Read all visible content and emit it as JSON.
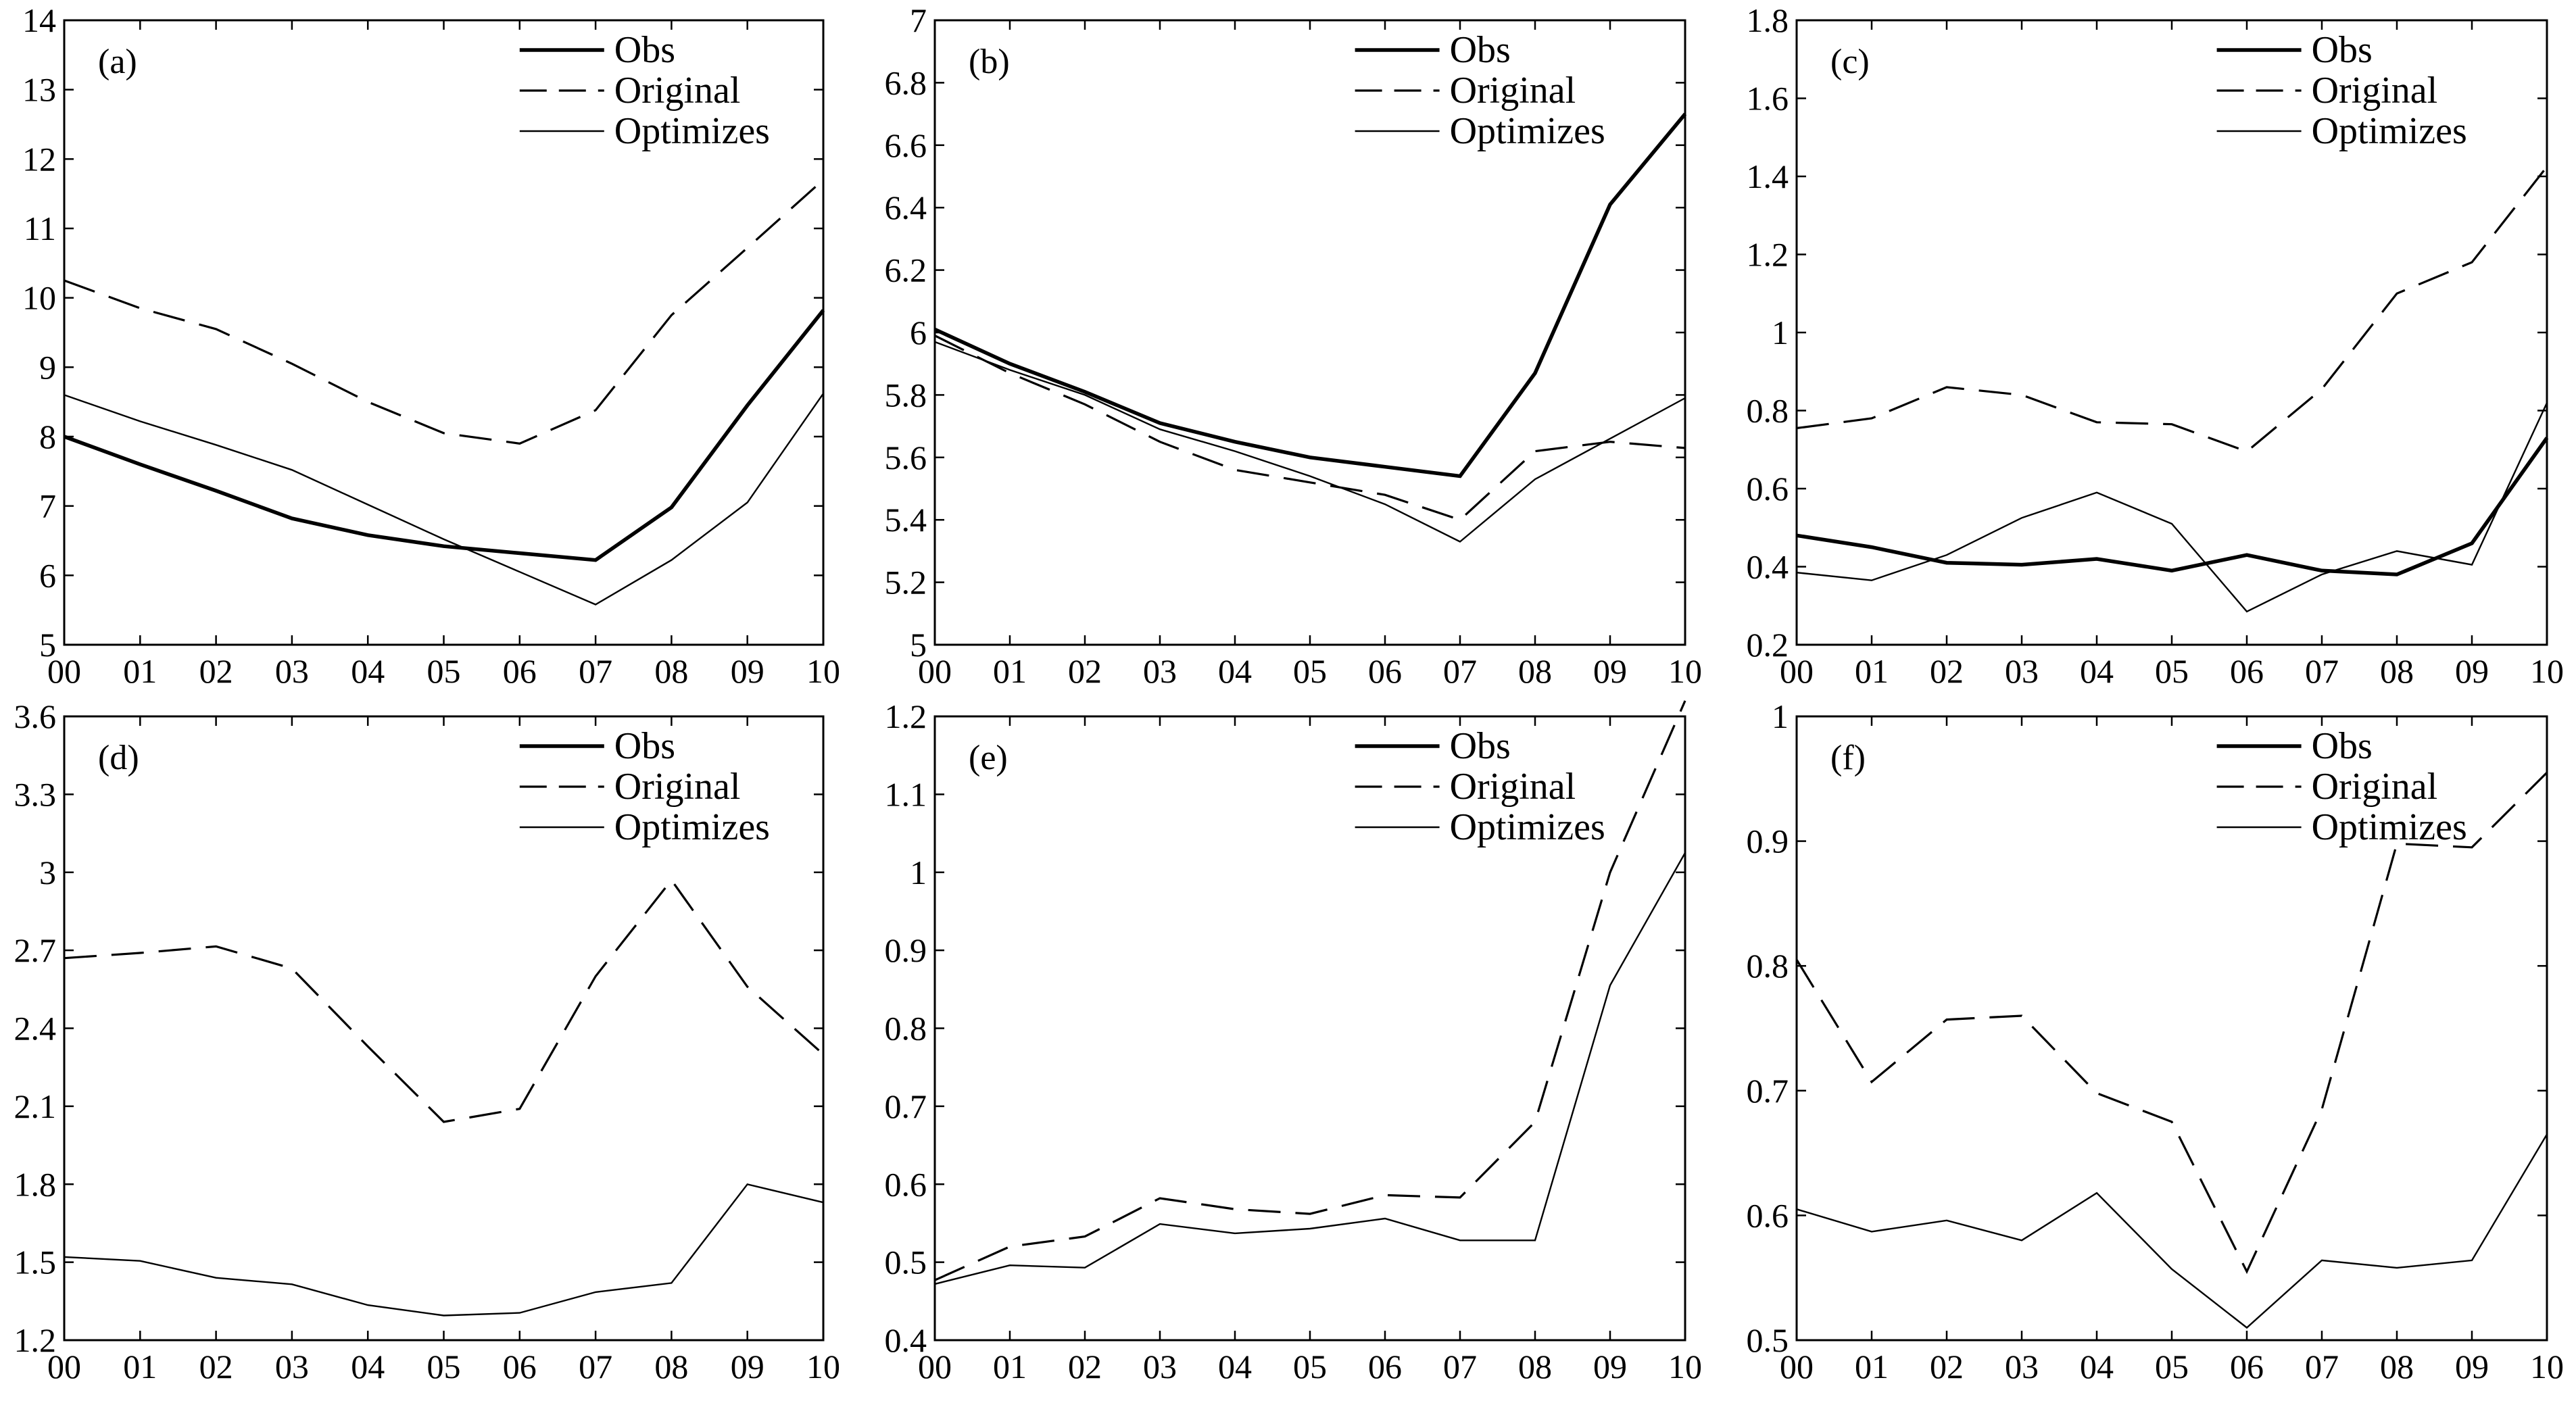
{
  "legend": {
    "entries": [
      {
        "key": "obs",
        "label": "Obs",
        "style": "solid"
      },
      {
        "key": "original",
        "label": "Original",
        "style": "dashed"
      },
      {
        "key": "optimized",
        "label": "Optimizes",
        "style": "dotted"
      }
    ]
  },
  "colors": {
    "line": "#000000",
    "background": "#ffffff"
  },
  "chart_data": [
    {
      "type": "line",
      "panel_label": "(a)",
      "x": [
        "00",
        "01",
        "02",
        "03",
        "04",
        "05",
        "06",
        "07",
        "08",
        "09",
        "10"
      ],
      "ylim": [
        5,
        14
      ],
      "yticks": [
        "5",
        "6",
        "7",
        "8",
        "9",
        "10",
        "11",
        "12",
        "13",
        "14"
      ],
      "legend_position": "top-center",
      "series": [
        {
          "key": "obs",
          "name": "Obs",
          "values": [
            8.0,
            7.6,
            7.22,
            6.82,
            6.58,
            6.42,
            6.32,
            6.22,
            6.98,
            8.45,
            9.82
          ]
        },
        {
          "key": "original",
          "name": "Original",
          "values": [
            10.25,
            9.85,
            9.55,
            9.05,
            8.5,
            8.05,
            7.9,
            8.38,
            9.75,
            10.72,
            11.7
          ]
        },
        {
          "key": "optimized",
          "name": "Optimizes",
          "values": [
            8.6,
            8.22,
            7.88,
            7.52,
            7.02,
            6.52,
            6.05,
            5.58,
            6.22,
            7.05,
            8.62
          ]
        }
      ]
    },
    {
      "type": "line",
      "panel_label": "(b)",
      "x": [
        "00",
        "01",
        "02",
        "03",
        "04",
        "05",
        "06",
        "07",
        "08",
        "09",
        "10"
      ],
      "ylim": [
        5,
        7
      ],
      "yticks": [
        "5",
        "5.2",
        "5.4",
        "5.6",
        "5.8",
        "6",
        "6.2",
        "6.4",
        "6.6",
        "6.8",
        "7"
      ],
      "legend_position": "top-right",
      "series": [
        {
          "key": "obs",
          "name": "Obs",
          "values": [
            6.01,
            5.9,
            5.81,
            5.71,
            5.65,
            5.6,
            5.57,
            5.54,
            5.87,
            6.41,
            6.7
          ]
        },
        {
          "key": "original",
          "name": "Original",
          "values": [
            5.99,
            5.87,
            5.77,
            5.65,
            5.56,
            5.52,
            5.48,
            5.4,
            5.62,
            5.65,
            5.63
          ]
        },
        {
          "key": "optimized",
          "name": "Optimizes",
          "values": [
            5.97,
            5.88,
            5.8,
            5.69,
            5.62,
            5.54,
            5.45,
            5.33,
            5.53,
            5.66,
            5.79
          ]
        }
      ]
    },
    {
      "type": "line",
      "panel_label": "(c)",
      "x": [
        "00",
        "01",
        "02",
        "03",
        "04",
        "05",
        "06",
        "07",
        "08",
        "09",
        "10"
      ],
      "ylim": [
        0.2,
        1.8
      ],
      "yticks": [
        "0.2",
        "0.4",
        "0.6",
        "0.8",
        "1",
        "1.2",
        "1.4",
        "1.6",
        "1.8"
      ],
      "legend_position": "top-right",
      "series": [
        {
          "key": "obs",
          "name": "Obs",
          "values": [
            0.48,
            0.45,
            0.41,
            0.405,
            0.42,
            0.39,
            0.43,
            0.39,
            0.38,
            0.46,
            0.73
          ]
        },
        {
          "key": "original",
          "name": "Original",
          "values": [
            0.755,
            0.78,
            0.86,
            0.84,
            0.77,
            0.765,
            0.695,
            0.855,
            1.1,
            1.18,
            1.425
          ]
        },
        {
          "key": "optimized",
          "name": "Optimizes",
          "values": [
            0.385,
            0.365,
            0.43,
            0.525,
            0.59,
            0.51,
            0.285,
            0.38,
            0.44,
            0.405,
            0.82
          ]
        }
      ]
    },
    {
      "type": "line",
      "panel_label": "(d)",
      "x": [
        "00",
        "01",
        "02",
        "03",
        "04",
        "05",
        "06",
        "07",
        "08",
        "09",
        "10"
      ],
      "ylim": [
        1.2,
        3.6
      ],
      "yticks": [
        "1.2",
        "1.5",
        "1.8",
        "2.1",
        "2.4",
        "2.7",
        "3",
        "3.3",
        "3.6"
      ],
      "legend_position": "top-center",
      "series": [
        {
          "key": "original",
          "name": "Original",
          "values": [
            2.67,
            2.69,
            2.715,
            2.63,
            2.33,
            2.04,
            2.09,
            2.6,
            2.97,
            2.56,
            2.3
          ]
        },
        {
          "key": "optimized",
          "name": "Optimizes",
          "values": [
            1.52,
            1.505,
            1.44,
            1.415,
            1.335,
            1.295,
            1.305,
            1.385,
            1.42,
            1.8,
            1.73
          ]
        }
      ]
    },
    {
      "type": "line",
      "panel_label": "(e)",
      "x": [
        "00",
        "01",
        "02",
        "03",
        "04",
        "05",
        "06",
        "07",
        "08",
        "09",
        "10"
      ],
      "ylim": [
        0.4,
        1.2
      ],
      "yticks": [
        "0.4",
        "0.5",
        "0.6",
        "0.7",
        "0.8",
        "0.9",
        "1",
        "1.1",
        "1.2"
      ],
      "legend_position": "top-right",
      "series": [
        {
          "key": "original",
          "name": "Original",
          "values": [
            0.477,
            0.52,
            0.533,
            0.582,
            0.568,
            0.562,
            0.586,
            0.583,
            0.68,
            1.0,
            1.22
          ]
        },
        {
          "key": "optimized",
          "name": "Optimizes",
          "values": [
            0.472,
            0.496,
            0.493,
            0.549,
            0.537,
            0.543,
            0.556,
            0.528,
            0.528,
            0.855,
            1.025
          ]
        }
      ]
    },
    {
      "type": "line",
      "panel_label": "(f)",
      "x": [
        "00",
        "01",
        "02",
        "03",
        "04",
        "05",
        "06",
        "07",
        "08",
        "09",
        "10"
      ],
      "ylim": [
        0.5,
        1
      ],
      "yticks": [
        "0.5",
        "0.6",
        "0.7",
        "0.8",
        "0.9",
        "1"
      ],
      "legend_position": "top-right",
      "series": [
        {
          "key": "original",
          "name": "Original",
          "values": [
            0.805,
            0.707,
            0.757,
            0.76,
            0.698,
            0.675,
            0.555,
            0.685,
            0.898,
            0.895,
            0.955
          ]
        },
        {
          "key": "optimized",
          "name": "Optimizes",
          "values": [
            0.605,
            0.587,
            0.596,
            0.58,
            0.618,
            0.557,
            0.51,
            0.564,
            0.558,
            0.564,
            0.665
          ]
        }
      ]
    }
  ]
}
